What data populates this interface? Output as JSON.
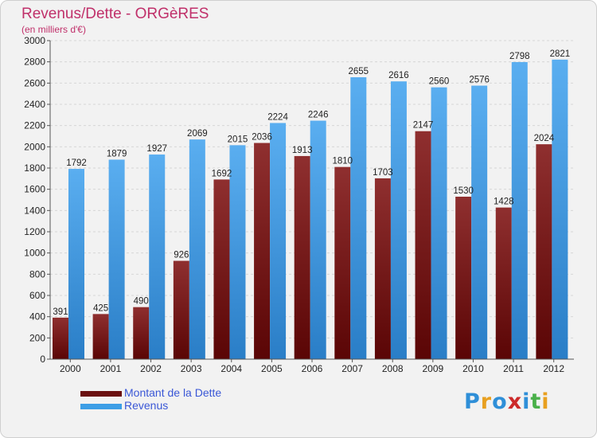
{
  "header": {
    "title": "Revenus/Dette - ORGèRES",
    "subtitle": "(en milliers d'€)"
  },
  "chart_data": {
    "type": "bar",
    "categories": [
      "2000",
      "2001",
      "2002",
      "2003",
      "2004",
      "2005",
      "2006",
      "2007",
      "2008",
      "2009",
      "2010",
      "2011",
      "2012"
    ],
    "series": [
      {
        "name": "Montant de la Dette",
        "color": "#7a1d1d",
        "values": [
          391,
          425,
          490,
          926,
          1692,
          2036,
          1913,
          1810,
          1703,
          2147,
          1530,
          1428,
          2024
        ],
        "labels": [
          "391",
          "425",
          "490",
          "926",
          "1692",
          "2036",
          "1913",
          "1810",
          "1703",
          "2147",
          "1530",
          "1428",
          "2024"
        ]
      },
      {
        "name": "Revenus",
        "color": "#3d9ee6",
        "values": [
          1792,
          1879,
          1927,
          2069,
          2015,
          2224,
          2246,
          2655,
          2616,
          2560,
          2576,
          2798,
          2821
        ],
        "labels": [
          "1792",
          "1879",
          "1927",
          "2069",
          "2015",
          "2224",
          "2246",
          "2655",
          "2616",
          "2560",
          "2576",
          "2798",
          "2821"
        ]
      }
    ],
    "yticks": [
      "0",
      "200",
      "400",
      "600",
      "800",
      "1000",
      "1200",
      "1400",
      "1600",
      "1800",
      "2000",
      "2200",
      "2400",
      "2600",
      "2800",
      "3000"
    ],
    "ylim": [
      0,
      3000
    ],
    "grid": true,
    "legend": "bottom-left"
  },
  "legend": [
    {
      "label": "Montant de la Dette",
      "color": "#6b0f0f"
    },
    {
      "label": "Revenus",
      "color": "#3d9ee6"
    }
  ],
  "logo": {
    "letters": [
      "P",
      "r",
      "o",
      "x",
      "i",
      "t",
      "i"
    ],
    "colors": [
      "#2f8fd8",
      "#e8a020",
      "#2f8fd8",
      "#cc2a2a",
      "#2f8fd8",
      "#4ab04a",
      "#e8a020"
    ]
  }
}
